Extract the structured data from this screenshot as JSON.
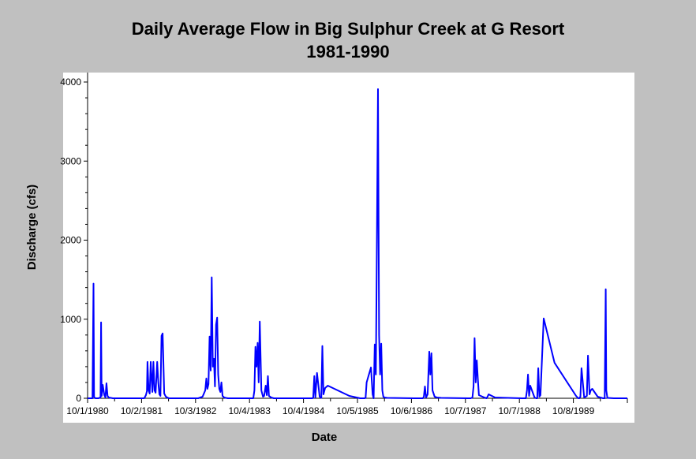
{
  "chart_data": {
    "type": "line",
    "title": "Daily Average Flow in Big Sulphur Creek at G Resort",
    "subtitle": "1981-1990",
    "xlabel": "Date",
    "ylabel": "Discharge (cfs)",
    "ylim": [
      0,
      4000
    ],
    "y_ticks": [
      0,
      1000,
      2000,
      3000,
      4000
    ],
    "y_tick_labels": [
      "0",
      "1000",
      "2000",
      "3000",
      "4000"
    ],
    "x_tick_labels": [
      "10/1/1980",
      "10/2/1981",
      "10/3/1982",
      "10/4/1983",
      "10/4/1984",
      "10/5/1985",
      "10/6/1986",
      "10/7/1987",
      "10/7/1988",
      "10/8/1989"
    ],
    "x_tick_years": [
      1980.75,
      1981.75,
      1982.75,
      1983.75,
      1984.75,
      1985.75,
      1986.75,
      1987.75,
      1988.75,
      1989.75
    ],
    "xlim_years": [
      1980.75,
      1990.75
    ],
    "grid": false,
    "series": [
      {
        "color": "#0000ff",
        "x_years": [
          1980.75,
          1980.84,
          1980.86,
          1980.87,
          1980.88,
          1980.9,
          1980.95,
          1980.99,
          1981.0,
          1981.01,
          1981.03,
          1981.06,
          1981.08,
          1981.1,
          1981.12,
          1981.14,
          1981.18,
          1981.22,
          1981.3,
          1981.6,
          1981.8,
          1981.83,
          1981.85,
          1981.86,
          1981.88,
          1981.9,
          1981.92,
          1981.95,
          1981.97,
          1981.99,
          1982.01,
          1982.04,
          1982.06,
          1982.08,
          1982.1,
          1982.12,
          1982.14,
          1982.17,
          1982.2,
          1982.24,
          1982.26,
          1982.28,
          1982.3,
          1982.32,
          1982.34,
          1982.4,
          1982.8,
          1982.88,
          1982.93,
          1982.95,
          1982.97,
          1982.99,
          1983.01,
          1983.03,
          1983.05,
          1983.07,
          1983.09,
          1983.11,
          1983.13,
          1983.15,
          1983.17,
          1983.19,
          1983.21,
          1983.23,
          1983.25,
          1983.28,
          1983.31,
          1983.35,
          1983.42,
          1983.8,
          1983.82,
          1983.84,
          1983.86,
          1983.88,
          1983.9,
          1983.92,
          1983.94,
          1983.97,
          1984.0,
          1984.02,
          1984.05,
          1984.07,
          1984.09,
          1984.11,
          1984.15,
          1984.2,
          1984.6,
          1984.91,
          1984.93,
          1984.95,
          1984.97,
          1985.0,
          1985.05,
          1985.08,
          1985.1,
          1985.12,
          1985.15,
          1985.2,
          1985.6,
          1985.8,
          1985.86,
          1985.88,
          1985.9,
          1985.92,
          1986.0,
          1986.03,
          1986.05,
          1986.07,
          1986.09,
          1986.11,
          1986.13,
          1986.15,
          1986.17,
          1986.19,
          1986.21,
          1986.23,
          1986.25,
          1986.3,
          1986.8,
          1986.96,
          1986.98,
          1987.0,
          1987.02,
          1987.05,
          1987.08,
          1987.1,
          1987.12,
          1987.14,
          1987.18,
          1987.22,
          1987.3,
          1987.8,
          1987.85,
          1987.88,
          1987.9,
          1987.92,
          1987.94,
          1987.96,
          1987.98,
          1988.0,
          1988.1,
          1988.14,
          1988.16,
          1988.18,
          1988.3,
          1988.8,
          1988.87,
          1988.89,
          1988.91,
          1988.93,
          1988.95,
          1989.03,
          1989.06,
          1989.08,
          1989.1,
          1989.12,
          1989.14,
          1989.2,
          1989.4,
          1989.8,
          1989.84,
          1989.86,
          1989.88,
          1989.9,
          1989.95,
          1990.0,
          1990.02,
          1990.05,
          1990.07,
          1990.1,
          1990.2,
          1990.3,
          1990.33,
          1990.35,
          1990.36,
          1990.38,
          1990.5,
          1990.75
        ],
        "y_cfs": [
          0,
          0,
          1450,
          20,
          5,
          0,
          0,
          10,
          960,
          30,
          170,
          40,
          10,
          190,
          30,
          10,
          5,
          0,
          0,
          0,
          0,
          40,
          90,
          460,
          100,
          60,
          460,
          80,
          460,
          100,
          70,
          460,
          200,
          50,
          30,
          790,
          820,
          60,
          20,
          5,
          0,
          0,
          0,
          0,
          0,
          0,
          0,
          20,
          100,
          250,
          120,
          180,
          780,
          350,
          1530,
          400,
          500,
          150,
          930,
          1020,
          300,
          120,
          80,
          200,
          30,
          10,
          5,
          0,
          0,
          0,
          0,
          100,
          650,
          400,
          700,
          200,
          970,
          100,
          20,
          30,
          160,
          40,
          280,
          30,
          10,
          0,
          0,
          0,
          5,
          280,
          10,
          320,
          20,
          5,
          660,
          50,
          130,
          160,
          30,
          0,
          0,
          0,
          5,
          200,
          390,
          50,
          0,
          680,
          300,
          1960,
          3910,
          800,
          300,
          690,
          100,
          20,
          10,
          5,
          0,
          0,
          20,
          150,
          10,
          50,
          590,
          300,
          570,
          100,
          20,
          10,
          5,
          0,
          0,
          10,
          150,
          760,
          200,
          480,
          250,
          40,
          10,
          0,
          20,
          50,
          10,
          0,
          0,
          100,
          300,
          30,
          160,
          10,
          0,
          0,
          380,
          20,
          40,
          1010,
          450,
          30,
          0,
          0,
          20,
          380,
          10,
          30,
          540,
          50,
          100,
          120,
          20,
          0,
          0,
          1380,
          100,
          5,
          0,
          0
        ]
      }
    ]
  }
}
